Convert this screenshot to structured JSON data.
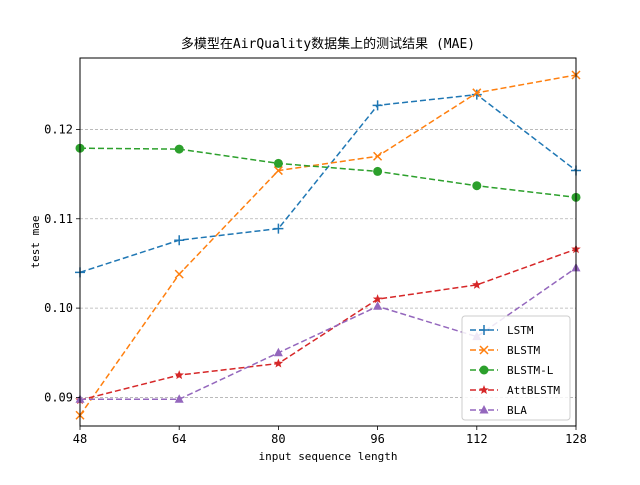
{
  "chart_data": {
    "type": "line",
    "title": "多模型在AirQuality数据集上的测试结果 (MAE)",
    "xlabel": "input sequence length",
    "ylabel": "test mae",
    "x": [
      48,
      64,
      80,
      96,
      112,
      128
    ],
    "xlim": [
      48,
      128
    ],
    "ylim": [
      0.0868,
      0.128
    ],
    "yticks": [
      0.09,
      0.1,
      0.11,
      0.12
    ],
    "ytick_labels": [
      "0.09",
      "0.10",
      "0.11",
      "0.12"
    ],
    "xtick_labels": [
      "48",
      "64",
      "80",
      "96",
      "112",
      "128"
    ],
    "grid": "y-dashed",
    "legend_position": "lower-right",
    "series": [
      {
        "name": "LSTM",
        "color": "#1f77b4",
        "marker": "plus",
        "values": [
          0.104,
          0.1076,
          0.1089,
          0.1227,
          0.1239,
          0.1154
        ]
      },
      {
        "name": "BLSTM",
        "color": "#ff7f0e",
        "marker": "x",
        "values": [
          0.088,
          0.1038,
          0.1154,
          0.117,
          0.1241,
          0.1261
        ]
      },
      {
        "name": "BLSTM-L",
        "color": "#2ca02c",
        "marker": "circle",
        "values": [
          0.1179,
          0.1178,
          0.1162,
          0.1153,
          0.1137,
          0.1124
        ]
      },
      {
        "name": "AttBLSTM",
        "color": "#d62728",
        "marker": "star",
        "values": [
          0.0897,
          0.0925,
          0.0938,
          0.101,
          0.1026,
          0.1066
        ]
      },
      {
        "name": "BLA",
        "color": "#9467bd",
        "marker": "triangle",
        "values": [
          0.0898,
          0.0898,
          0.095,
          0.1002,
          0.0968,
          0.1045
        ]
      }
    ]
  }
}
